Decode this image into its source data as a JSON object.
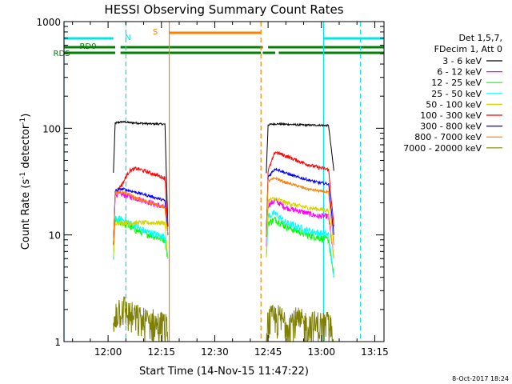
{
  "chart_data": {
    "type": "line",
    "title": "HESSI Observing Summary Count Rates",
    "xlabel": "Start Time (14-Nov-15 11:47:22)",
    "ylabel_main": "Count Rate (s",
    "ylabel_sup": "-1",
    "ylabel_mid": " detector",
    "ylabel_sup2": "-1",
    "ylabel_end": ")",
    "yscale": "log",
    "ylim": [
      1,
      1000
    ],
    "xlim_minutes": [
      -12.4,
      77.6
    ],
    "x_ticks": [
      "12:00",
      "12:15",
      "12:30",
      "12:45",
      "13:00",
      "13:15"
    ],
    "x_tick_minutes": [
      0,
      15,
      30,
      45,
      60,
      75
    ],
    "y_ticks": [
      "1",
      "10",
      "100",
      "1000"
    ],
    "y_tick_values": [
      1,
      10,
      100,
      1000
    ],
    "legend_header": [
      "Det 1,5,7,",
      "FDecim 1, Att 0"
    ],
    "legend_placement": "right",
    "timestamp": "8-Oct-2017 18:24",
    "bands": [
      {
        "label": "RD0",
        "color": "#008000",
        "level": 1
      },
      {
        "label": "RDS",
        "color": "#008000",
        "level": 0
      },
      {
        "label": "N",
        "color": "#00e5e5",
        "level": 2
      },
      {
        "label": "S",
        "color": "#ff8000",
        "level": 3
      }
    ],
    "segments": {
      "night": [
        [
          -12.4,
          1.5
        ],
        [
          60.6,
          77.6
        ]
      ],
      "saa": [
        [
          17.2,
          43.0
        ]
      ],
      "rd0": [
        [
          -12.4,
          2.0
        ],
        [
          3.5,
          43.5
        ],
        [
          45.0,
          77.6
        ]
      ],
      "rds": [
        [
          -12.4,
          2.0
        ],
        [
          3.5,
          43.0
        ],
        [
          43.5,
          47.0
        ],
        [
          48.0,
          77.6
        ]
      ]
    },
    "vlines": [
      {
        "minute": -12.4,
        "color": "#00e5e5",
        "style": "solid"
      },
      {
        "minute": 5.0,
        "color": "#00e5e5",
        "style": "dashed"
      },
      {
        "minute": 17.2,
        "color": "#ff8000",
        "style": "solid"
      },
      {
        "minute": 43.0,
        "color": "#ff8000",
        "style": "dashed"
      },
      {
        "minute": 60.6,
        "color": "#00e5e5",
        "style": "solid"
      },
      {
        "minute": 71.0,
        "color": "#00e5e5",
        "style": "dashed"
      }
    ],
    "series": [
      {
        "name": "3 - 6 keV",
        "color": "#000000",
        "seg1": {
          "x": [
            1.5,
            2.0,
            4.0,
            6.0,
            8.0,
            10.0,
            12.0,
            14.0,
            16.0,
            16.8
          ],
          "y": [
            38,
            112,
            115,
            113,
            112,
            111,
            110,
            110,
            109,
            12
          ]
        },
        "seg2": {
          "x": [
            44.5,
            45.0,
            47.0,
            50.0,
            53.0,
            56.0,
            59.0,
            62.0,
            63.5
          ],
          "y": [
            38,
            108,
            110,
            109,
            108,
            107,
            107,
            106,
            40
          ]
        }
      },
      {
        "name": "6 - 12 keV",
        "color": "#ff00ff",
        "seg1": {
          "x": [
            1.5,
            2.0,
            4.0,
            6.0,
            8.0,
            10.0,
            12.0,
            14.0,
            16.0,
            16.8
          ],
          "y": [
            8,
            24,
            24,
            23,
            22,
            21,
            20,
            19,
            18,
            10
          ]
        },
        "seg2": {
          "x": [
            44.5,
            45.0,
            47.0,
            50.0,
            53.0,
            56.0,
            59.0,
            62.0,
            63.5
          ],
          "y": [
            8,
            19,
            21,
            18,
            17,
            16,
            15,
            15,
            6
          ]
        }
      },
      {
        "name": "12 - 25 keV",
        "color": "#00ff00",
        "seg1": {
          "x": [
            1.5,
            2.0,
            4.0,
            6.0,
            8.0,
            10.0,
            12.0,
            14.0,
            16.0,
            16.8
          ],
          "y": [
            6,
            14,
            13,
            12,
            11,
            10.5,
            10,
            9.5,
            9,
            6
          ]
        },
        "seg2": {
          "x": [
            44.5,
            45.0,
            47.0,
            50.0,
            53.0,
            56.0,
            59.0,
            62.0,
            63.5
          ],
          "y": [
            6,
            13,
            14,
            12,
            11,
            10,
            9.5,
            9,
            4
          ]
        }
      },
      {
        "name": "25 - 50 keV",
        "color": "#00ffff",
        "seg1": {
          "x": [
            1.5,
            2.0,
            4.0,
            6.0,
            8.0,
            10.0,
            12.0,
            14.0,
            16.0,
            16.8
          ],
          "y": [
            6,
            14,
            14,
            13,
            12,
            11,
            10.5,
            10,
            9.5,
            6
          ]
        },
        "seg2": {
          "x": [
            44.5,
            45.0,
            47.0,
            50.0,
            53.0,
            56.0,
            59.0,
            62.0,
            63.5
          ],
          "y": [
            6,
            15,
            16,
            13,
            12,
            11,
            10.5,
            10,
            4
          ]
        }
      },
      {
        "name": "50 - 100 keV",
        "color": "#d4d400",
        "seg1": {
          "x": [
            1.5,
            2.0,
            4.0,
            6.0,
            8.0,
            10.0,
            12.0,
            14.0,
            16.0,
            16.8
          ],
          "y": [
            6,
            13,
            13,
            13,
            13,
            13,
            13,
            13,
            13,
            6
          ]
        },
        "seg2": {
          "x": [
            44.5,
            45.0,
            47.0,
            50.0,
            53.0,
            56.0,
            59.0,
            62.0,
            63.5
          ],
          "y": [
            6,
            21,
            22,
            20,
            19,
            18,
            17.5,
            17,
            6
          ]
        }
      },
      {
        "name": "100 - 300 keV",
        "color": "#ff0000",
        "seg1": {
          "x": [
            1.5,
            2.0,
            4.0,
            6.0,
            8.0,
            10.0,
            12.0,
            14.0,
            16.0,
            16.8
          ],
          "y": [
            8,
            25,
            30,
            40,
            42,
            40,
            38,
            36,
            34,
            12
          ]
        },
        "seg2": {
          "x": [
            44.5,
            45.0,
            47.0,
            50.0,
            53.0,
            56.0,
            59.0,
            62.0,
            63.5
          ],
          "y": [
            10,
            40,
            60,
            55,
            50,
            46,
            43,
            41,
            12
          ]
        }
      },
      {
        "name": "300 - 800 keV",
        "color": "#0000ff",
        "seg1": {
          "x": [
            1.5,
            2.0,
            4.0,
            6.0,
            8.0,
            10.0,
            12.0,
            14.0,
            16.0,
            16.8
          ],
          "y": [
            8,
            26,
            27,
            26,
            25,
            24,
            23,
            22,
            21,
            10
          ]
        },
        "seg2": {
          "x": [
            44.5,
            45.0,
            47.0,
            50.0,
            53.0,
            56.0,
            59.0,
            62.0,
            63.5
          ],
          "y": [
            10,
            35,
            42,
            38,
            35,
            33,
            31,
            30,
            10
          ]
        }
      },
      {
        "name": "800 - 7000 keV",
        "color": "#ff8000",
        "seg1": {
          "x": [
            1.5,
            2.0,
            4.0,
            6.0,
            8.0,
            10.0,
            12.0,
            14.0,
            16.0,
            16.8
          ],
          "y": [
            8,
            25,
            25,
            24,
            22,
            21,
            20,
            19,
            18,
            10
          ]
        },
        "seg2": {
          "x": [
            44.5,
            45.0,
            47.0,
            50.0,
            53.0,
            56.0,
            59.0,
            62.0,
            63.5
          ],
          "y": [
            10,
            32,
            34,
            31,
            29,
            27,
            26,
            25,
            8
          ]
        }
      },
      {
        "name": "7000 - 20000 keV",
        "color": "#808000",
        "seg1": {
          "x": [
            1.5,
            2.0,
            4.0,
            6.0,
            8.0,
            10.0,
            12.0,
            14.0,
            16.0,
            16.8
          ],
          "y": [
            1,
            1.6,
            1.8,
            1.5,
            1.4,
            1.3,
            1.3,
            1.2,
            1.2,
            1
          ]
        },
        "seg2": {
          "x": [
            44.5,
            45.0,
            47.0,
            50.0,
            53.0,
            56.0,
            59.0,
            62.0,
            63.5
          ],
          "y": [
            1,
            1.3,
            1.4,
            1.3,
            1.3,
            1.2,
            1.2,
            1.2,
            1
          ]
        }
      }
    ]
  }
}
